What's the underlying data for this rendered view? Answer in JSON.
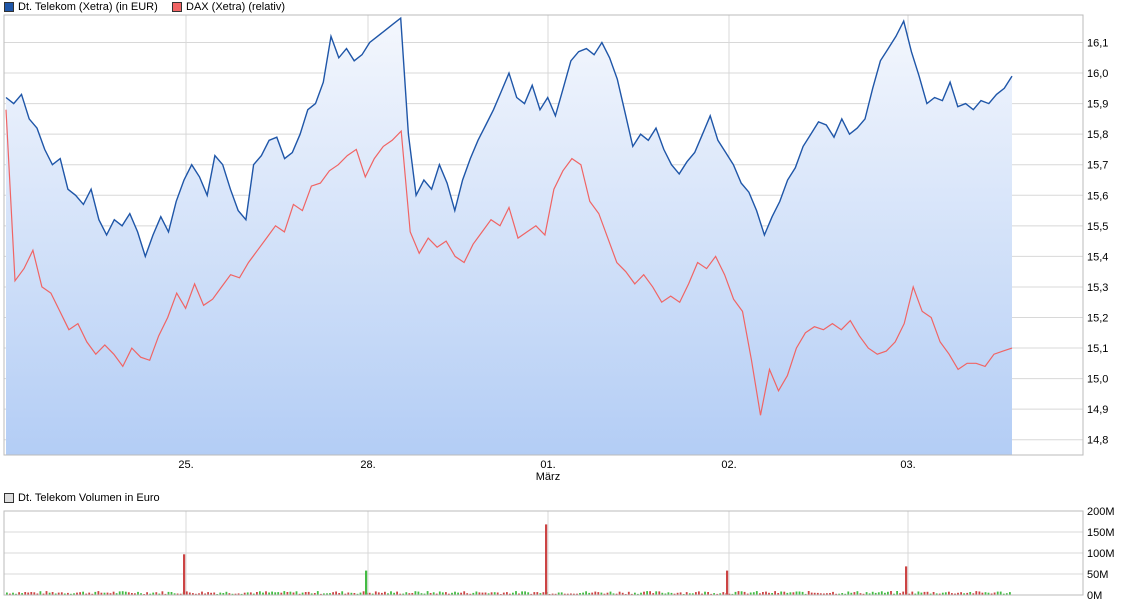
{
  "legend": {
    "series1": "Dt. Telekom (Xetra) (in EUR)",
    "series2": "DAX (Xetra) (relativ)",
    "volume": "Dt. Telekom Volumen in Euro"
  },
  "colors": {
    "price": "#1f56a8",
    "dax": "#f06464",
    "vol_up": "#44bb44",
    "vol_down": "#cc4444",
    "fill_top": "#f4f7fd",
    "fill_bottom": "#b3cdf5",
    "grid": "#d8d8d8"
  },
  "chart_data": [
    {
      "type": "line",
      "y_ticks": [
        "14,8",
        "14,9",
        "15,0",
        "15,1",
        "15,2",
        "15,3",
        "15,4",
        "15,5",
        "15,6",
        "15,7",
        "15,8",
        "15,9",
        "16,0",
        "16,1"
      ],
      "ylim": [
        14.75,
        16.19
      ],
      "x_ticks": [
        "25.",
        "28.",
        "01.",
        "02.",
        "03."
      ],
      "x_sublabel": "März",
      "series": [
        {
          "name": "Dt. Telekom (Xetra) (in EUR)",
          "values": [
            15.92,
            15.9,
            15.93,
            15.85,
            15.82,
            15.75,
            15.7,
            15.72,
            15.62,
            15.6,
            15.57,
            15.62,
            15.52,
            15.47,
            15.52,
            15.5,
            15.54,
            15.48,
            15.4,
            15.47,
            15.53,
            15.48,
            15.58,
            15.65,
            15.7,
            15.66,
            15.6,
            15.73,
            15.7,
            15.62,
            15.55,
            15.52,
            15.7,
            15.73,
            15.78,
            15.79,
            15.72,
            15.74,
            15.8,
            15.88,
            15.9,
            15.97,
            16.12,
            16.05,
            16.08,
            16.04,
            16.06,
            16.1,
            16.12,
            16.14,
            16.16,
            16.18,
            15.8,
            15.6,
            15.65,
            15.62,
            15.7,
            15.64,
            15.55,
            15.65,
            15.72,
            15.78,
            15.83,
            15.88,
            15.94,
            16.0,
            15.92,
            15.9,
            15.96,
            15.88,
            15.92,
            15.86,
            15.95,
            16.04,
            16.07,
            16.08,
            16.06,
            16.1,
            16.05,
            15.98,
            15.87,
            15.76,
            15.8,
            15.78,
            15.82,
            15.75,
            15.7,
            15.67,
            15.71,
            15.74,
            15.8,
            15.86,
            15.78,
            15.74,
            15.7,
            15.64,
            15.61,
            15.55,
            15.47,
            15.53,
            15.58,
            15.65,
            15.69,
            15.76,
            15.8,
            15.84,
            15.83,
            15.79,
            15.85,
            15.8,
            15.82,
            15.85,
            15.95,
            16.04,
            16.08,
            16.12,
            16.17,
            16.07,
            15.99,
            15.9,
            15.92,
            15.91,
            15.97,
            15.89,
            15.9,
            15.88,
            15.91,
            15.9,
            15.93,
            15.95,
            15.99
          ]
        },
        {
          "name": "DAX (Xetra) (relativ)",
          "values": [
            15.88,
            15.32,
            15.36,
            15.42,
            15.3,
            15.28,
            15.22,
            15.16,
            15.18,
            15.12,
            15.08,
            15.11,
            15.08,
            15.04,
            15.1,
            15.07,
            15.06,
            15.14,
            15.2,
            15.28,
            15.23,
            15.31,
            15.24,
            15.26,
            15.3,
            15.34,
            15.33,
            15.38,
            15.42,
            15.46,
            15.5,
            15.48,
            15.57,
            15.55,
            15.63,
            15.64,
            15.68,
            15.7,
            15.73,
            15.75,
            15.66,
            15.72,
            15.76,
            15.78,
            15.81,
            15.48,
            15.41,
            15.46,
            15.43,
            15.45,
            15.4,
            15.38,
            15.44,
            15.48,
            15.52,
            15.5,
            15.56,
            15.46,
            15.48,
            15.5,
            15.47,
            15.62,
            15.68,
            15.72,
            15.7,
            15.58,
            15.54,
            15.46,
            15.38,
            15.35,
            15.31,
            15.34,
            15.3,
            15.25,
            15.27,
            15.25,
            15.31,
            15.38,
            15.36,
            15.4,
            15.34,
            15.26,
            15.22,
            15.06,
            14.88,
            15.03,
            14.96,
            15.01,
            15.1,
            15.15,
            15.17,
            15.16,
            15.18,
            15.16,
            15.19,
            15.14,
            15.1,
            15.08,
            15.09,
            15.12,
            15.18,
            15.3,
            15.22,
            15.2,
            15.12,
            15.08,
            15.03,
            15.05,
            15.05,
            15.04,
            15.08,
            15.09,
            15.1
          ]
        }
      ]
    },
    {
      "type": "bar",
      "title": "Dt. Telekom Volumen in Euro",
      "y_ticks": [
        "200M",
        "150M",
        "100M",
        "50M",
        "0M"
      ],
      "ylim": [
        0,
        200
      ],
      "spikes": [
        {
          "x_tick": "25.",
          "value": 97,
          "direction": "down"
        },
        {
          "x_tick": "28.",
          "value": 58,
          "direction": "up"
        },
        {
          "x_tick": "01.",
          "value": 168,
          "direction": "down"
        },
        {
          "x_tick": "02.",
          "value": 58,
          "direction": "down"
        },
        {
          "x_tick": "03.",
          "value": 68,
          "direction": "down"
        }
      ],
      "baseline_volume": 8
    }
  ]
}
